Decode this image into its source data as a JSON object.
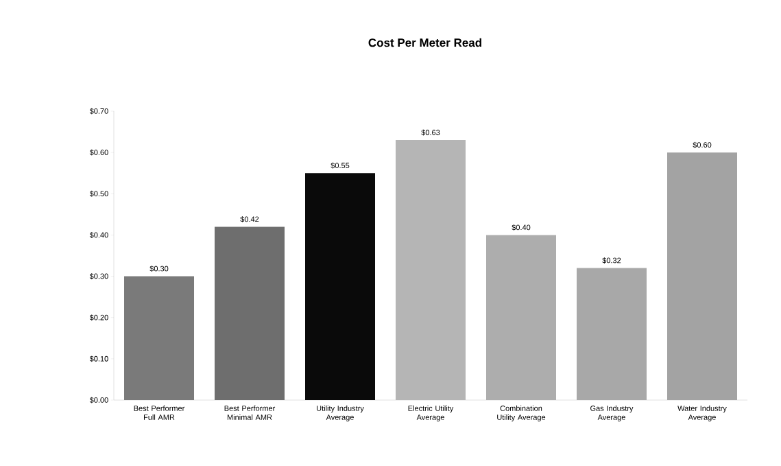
{
  "chart_data": {
    "type": "bar",
    "title": "Cost Per Meter Read",
    "categories": [
      "Best Performer Full AMR",
      "Best Performer Minimal AMR",
      "Utility Industry Average",
      "Electric Utility Average",
      "Combination Utility Average",
      "Gas Industry Average",
      "Water Industry Average"
    ],
    "values": [
      0.3,
      0.42,
      0.55,
      0.63,
      0.4,
      0.32,
      0.6
    ],
    "value_labels": [
      "$0.30",
      "$0.42",
      "$0.55",
      "$0.63",
      "$0.40",
      "$0.32",
      "$0.60"
    ],
    "colors": [
      "#7a7a7a",
      "#6e6e6e",
      "#0a0a0a",
      "#b5b5b5",
      "#adadad",
      "#a8a8a8",
      "#a3a3a3"
    ],
    "ylim": [
      0,
      0.7
    ],
    "yticks": [
      {
        "value": 0,
        "label": "$0.00"
      },
      {
        "value": 0.1,
        "label": "$0.10"
      },
      {
        "value": 0.2,
        "label": "$0.20"
      },
      {
        "value": 0.3,
        "label": "$0.30"
      },
      {
        "value": 0.4,
        "label": "$0.40"
      },
      {
        "value": 0.5,
        "label": "$0.50"
      },
      {
        "value": 0.6,
        "label": "$0.60"
      },
      {
        "value": 0.7,
        "label": "$0.70"
      }
    ]
  }
}
